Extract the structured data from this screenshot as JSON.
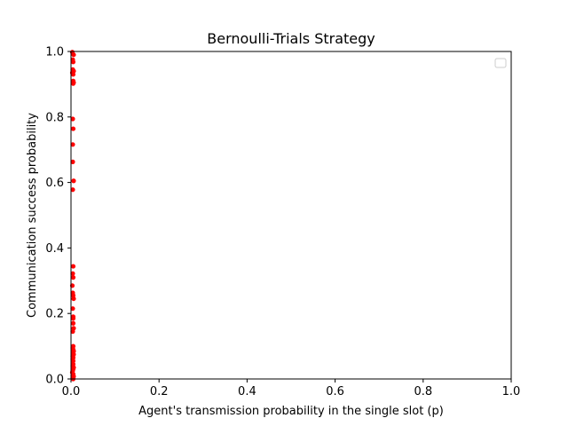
{
  "chart_data": {
    "type": "scatter",
    "title": "Bernoulli-Trials Strategy",
    "xlabel": "Agent's transmission probability in the single slot (p)",
    "ylabel": "Communication success probability",
    "xlim": [
      0,
      1
    ],
    "ylim": [
      0,
      1
    ],
    "xticks": [
      "0.0",
      "0.2",
      "0.4",
      "0.6",
      "0.8",
      "1.0"
    ],
    "yticks": [
      "0.0",
      "0.2",
      "0.4",
      "0.6",
      "0.8",
      "1.0"
    ],
    "grid": false,
    "legend": {
      "placement": "top-right",
      "entries": []
    },
    "marker_color": "#ff0000",
    "series": [
      {
        "x": [
          0.003,
          0.006,
          0.004,
          0.005,
          0.004,
          0.006,
          0.003,
          0.005,
          0.005,
          0.006,
          0.005,
          0.004,
          0.005,
          0.004,
          0.004,
          0.006,
          0.004,
          0.005,
          0.004,
          0.005,
          0.003,
          0.004,
          0.005,
          0.006,
          0.004,
          0.005,
          0.005,
          0.005,
          0.006,
          0.004,
          0.005,
          0.004,
          0.005,
          0.006,
          0.005,
          0.006,
          0.004,
          0.005,
          0.004,
          0.005,
          0.005,
          0.004,
          0.006,
          0.005,
          0.004,
          0.003,
          0.005,
          0.004,
          0.006,
          0.005,
          0.004,
          0.005,
          0.005
        ],
        "y": [
          0.998,
          0.99,
          0.975,
          0.968,
          0.945,
          0.94,
          0.935,
          0.93,
          0.91,
          0.905,
          0.902,
          0.794,
          0.764,
          0.716,
          0.663,
          0.605,
          0.578,
          0.344,
          0.322,
          0.31,
          0.285,
          0.263,
          0.255,
          0.245,
          0.215,
          0.19,
          0.185,
          0.17,
          0.155,
          0.145,
          0.1,
          0.095,
          0.09,
          0.085,
          0.08,
          0.075,
          0.07,
          0.065,
          0.06,
          0.055,
          0.045,
          0.04,
          0.035,
          0.03,
          0.025,
          0.02,
          0.015,
          0.01,
          0.008,
          0.005,
          0.003,
          0.002,
          0.0
        ]
      }
    ]
  }
}
